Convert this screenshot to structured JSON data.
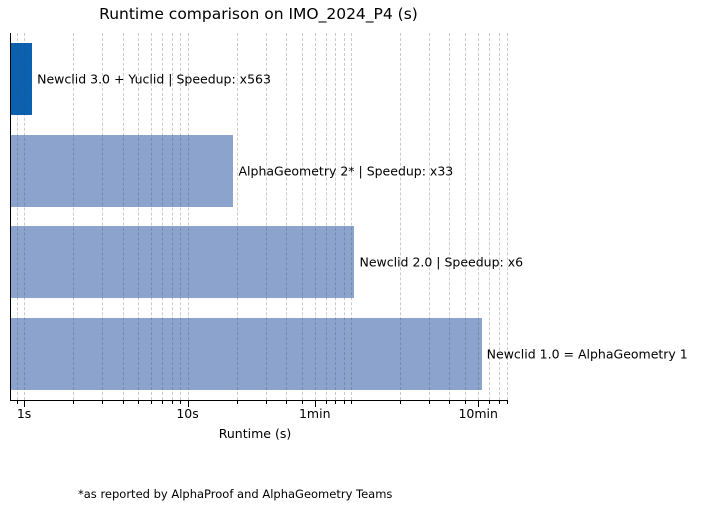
{
  "title": "Runtime comparison on IMO_2024_P4 (s)",
  "footnote": "*as reported by AlphaProof and AlphaGeometry Teams",
  "chart_data": {
    "type": "bar",
    "orientation": "horizontal",
    "title": "Runtime comparison on IMO_2024_P4 (s)",
    "xlabel": "Runtime (s)",
    "xscale": "log",
    "xlim": [
      0.82,
      900
    ],
    "grid": "dashed-vertical",
    "legend": "none",
    "bars": [
      {
        "label": "Newclid 3.0 + Yuclid | Speedup: x563",
        "runtime_seconds": 1.12,
        "speedup": "x563",
        "color": "#0b61b0"
      },
      {
        "label": "AlphaGeometry 2* | Speedup: x33",
        "runtime_seconds": 19.1,
        "speedup": "x33",
        "color": "#8ca3cd"
      },
      {
        "label": "Newclid 2.0 | Speedup: x6",
        "runtime_seconds": 105,
        "speedup": "x6",
        "color": "#8ca3cd"
      },
      {
        "label": "Newclid 1.0 = AlphaGeometry 1",
        "runtime_seconds": 630,
        "speedup": null,
        "color": "#8ca3cd"
      }
    ],
    "x_major_ticks": [
      {
        "value": 1,
        "label": "1s"
      },
      {
        "value": 10,
        "label": "10s"
      },
      {
        "value": 60,
        "label": "1min"
      },
      {
        "value": 600,
        "label": "10min"
      }
    ],
    "x_minor_ticks": [
      0.9,
      2,
      3,
      4,
      5,
      6,
      7,
      8,
      9,
      20,
      30,
      40,
      50,
      70,
      80,
      90,
      100,
      200,
      300,
      400,
      500,
      700,
      800,
      900
    ],
    "footnote": "*as reported by AlphaProof and AlphaGeometry Teams",
    "colors": {
      "highlight_bar": "#0b61b0",
      "default_bar": "#8ca3cd",
      "grid": "#c9c9c9",
      "text": "#000000",
      "background": "#ffffff"
    }
  }
}
